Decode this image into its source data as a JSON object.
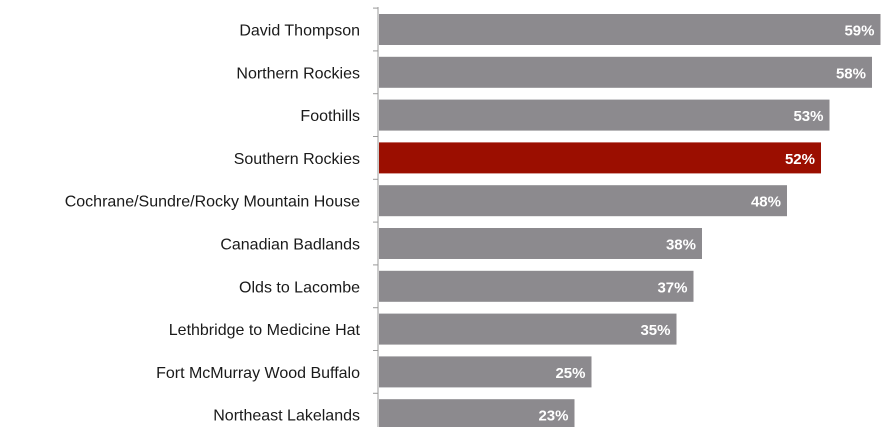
{
  "chart_data": {
    "type": "bar",
    "orientation": "horizontal",
    "categories": [
      "David Thompson",
      "Northern Rockies",
      "Foothills",
      "Southern Rockies",
      "Cochrane/Sundre/Rocky Mountain House",
      "Canadian Badlands",
      "Olds to Lacombe",
      "Lethbridge to Medicine Hat",
      "Fort McMurray Wood Buffalo",
      "Northeast Lakelands"
    ],
    "values": [
      59,
      58,
      53,
      52,
      48,
      38,
      37,
      35,
      25,
      23
    ],
    "value_labels": [
      "59%",
      "58%",
      "53%",
      "52%",
      "48%",
      "38%",
      "37%",
      "35%",
      "25%",
      "23%"
    ],
    "highlight_category": "Southern Rockies",
    "colors": {
      "default": "#8c8a8e",
      "highlight": "#9b0e00",
      "label": "#ffffff"
    },
    "xlim": [
      0,
      60
    ],
    "grid": false,
    "title": "",
    "xlabel": "",
    "ylabel": ""
  }
}
